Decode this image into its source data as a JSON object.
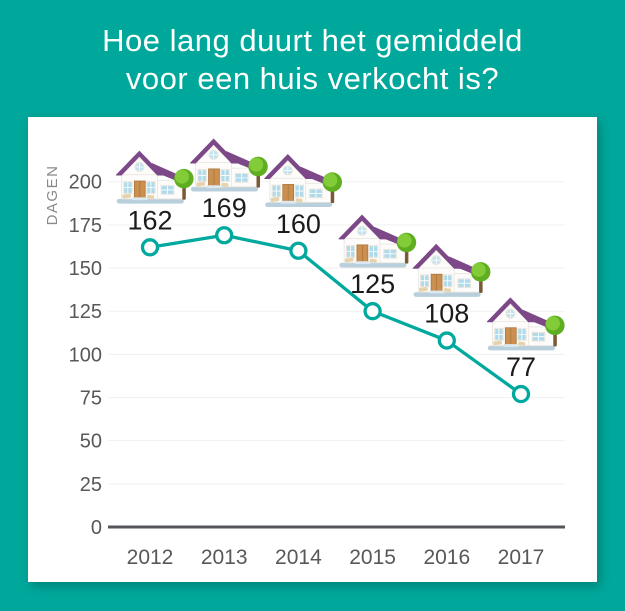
{
  "page": {
    "title_line1": "Hoe lang duurt het gemiddeld",
    "title_line2": "voor een huis verkocht is?"
  },
  "colors": {
    "background_teal": "#00a79b",
    "card_white": "#ffffff",
    "line_teal": "#00a99d",
    "grid_gray": "#f1f1f1",
    "axis_gray": "#55565a",
    "tick_text_gray": "#58585a",
    "data_label_black": "#1b1b1b",
    "axis_title_gray": "#8a8a8a",
    "house_roof_purple": "#7c4887",
    "house_window_blue": "#aedbeb",
    "house_door_tan": "#cb8f50",
    "tree_green": "#5fae21",
    "platform_blue": "#b9d0dc"
  },
  "icons": {
    "point_icon": "house-icon"
  },
  "chart_data": {
    "type": "line",
    "x": [
      "2012",
      "2013",
      "2014",
      "2015",
      "2016",
      "2017"
    ],
    "series": [
      {
        "name": "dagen",
        "values": [
          162,
          169,
          160,
          125,
          108,
          77
        ]
      }
    ],
    "title": "Hoe lang duurt het gemiddeld voor een huis verkocht is?",
    "xlabel": "",
    "ylabel": "DAGEN",
    "ylim": [
      0,
      200
    ],
    "yticks": [
      0,
      25,
      50,
      75,
      100,
      125,
      150,
      175,
      200
    ],
    "grid": true,
    "legend": "none",
    "marker": "open-circle",
    "data_labels_shown": true
  }
}
